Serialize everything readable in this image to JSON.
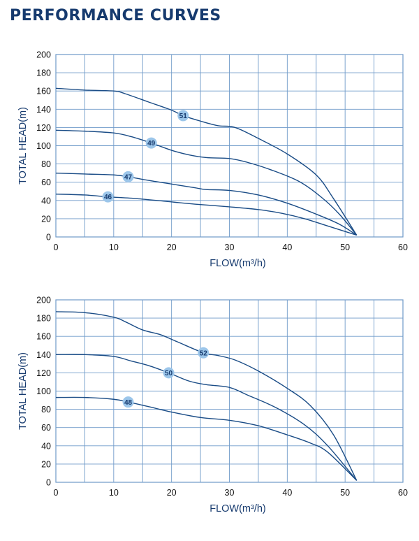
{
  "page_title": "PERFORMANCE CURVES",
  "colors": {
    "title": "#163a6e",
    "curve": "#1a4c86",
    "grid": "#6f9ac9",
    "badge_fill": "#9cc6ea",
    "axis_label": "#163a6e"
  },
  "chart_data": [
    {
      "type": "line",
      "xlabel": "FLOW(m³/h)",
      "ylabel": "TOTAL HEAD(m)",
      "xlim": [
        0,
        60
      ],
      "ylim": [
        0,
        200
      ],
      "xticks": [
        0,
        10,
        20,
        30,
        40,
        50,
        60
      ],
      "yticks": [
        0,
        20,
        40,
        60,
        80,
        100,
        120,
        140,
        160,
        180,
        200
      ],
      "grid": true,
      "series": [
        {
          "name": "51",
          "label_at": [
            22,
            133
          ],
          "points": [
            [
              0,
              163
            ],
            [
              5,
              161
            ],
            [
              10,
              160
            ],
            [
              12,
              157
            ],
            [
              16,
              148
            ],
            [
              20,
              139
            ],
            [
              22,
              133
            ],
            [
              25,
              127
            ],
            [
              28,
              122
            ],
            [
              31,
              120
            ],
            [
              35,
              108
            ],
            [
              40,
              91
            ],
            [
              45,
              68
            ],
            [
              48,
              42
            ],
            [
              52,
              2
            ]
          ]
        },
        {
          "name": "49",
          "label_at": [
            16.5,
            103
          ],
          "points": [
            [
              0,
              117
            ],
            [
              5,
              116
            ],
            [
              10,
              114
            ],
            [
              13,
              110
            ],
            [
              16.5,
              103
            ],
            [
              20,
              95
            ],
            [
              23,
              90
            ],
            [
              26,
              87
            ],
            [
              30,
              86
            ],
            [
              33,
              82
            ],
            [
              37,
              74
            ],
            [
              42,
              61
            ],
            [
              46,
              43
            ],
            [
              49,
              25
            ],
            [
              52,
              2
            ]
          ]
        },
        {
          "name": "47",
          "label_at": [
            12.5,
            66
          ],
          "points": [
            [
              0,
              70
            ],
            [
              5,
              69
            ],
            [
              10,
              68
            ],
            [
              12.5,
              66
            ],
            [
              16,
              62
            ],
            [
              20,
              58
            ],
            [
              24,
              54
            ],
            [
              26,
              52
            ],
            [
              30,
              51
            ],
            [
              35,
              46
            ],
            [
              40,
              37
            ],
            [
              45,
              25
            ],
            [
              49,
              14
            ],
            [
              52,
              2
            ]
          ]
        },
        {
          "name": "46",
          "label_at": [
            9,
            44
          ],
          "points": [
            [
              0,
              47
            ],
            [
              5,
              46
            ],
            [
              9,
              44
            ],
            [
              14,
              42
            ],
            [
              19,
              39
            ],
            [
              24,
              36
            ],
            [
              30,
              33
            ],
            [
              35,
              30
            ],
            [
              39,
              26
            ],
            [
              43,
              20
            ],
            [
              47,
              12
            ],
            [
              52,
              2
            ]
          ]
        }
      ]
    },
    {
      "type": "line",
      "xlabel": "FLOW(m³/h)",
      "ylabel": "TOTAL HEAD(m)",
      "xlim": [
        0,
        60
      ],
      "ylim": [
        0,
        200
      ],
      "xticks": [
        0,
        10,
        20,
        30,
        40,
        50,
        60
      ],
      "yticks": [
        0,
        20,
        40,
        60,
        80,
        100,
        120,
        140,
        160,
        180,
        200
      ],
      "grid": true,
      "series": [
        {
          "name": "52",
          "label_at": [
            25.5,
            142
          ],
          "points": [
            [
              0,
              187
            ],
            [
              5,
              186
            ],
            [
              10,
              181
            ],
            [
              12,
              176
            ],
            [
              15,
              167
            ],
            [
              18,
              162
            ],
            [
              21,
              154
            ],
            [
              25.5,
              142
            ],
            [
              28,
              139
            ],
            [
              31,
              134
            ],
            [
              35,
              122
            ],
            [
              40,
              103
            ],
            [
              44,
              84
            ],
            [
              48,
              52
            ],
            [
              52,
              2
            ]
          ]
        },
        {
          "name": "50",
          "label_at": [
            19.5,
            120
          ],
          "points": [
            [
              0,
              140
            ],
            [
              5,
              140
            ],
            [
              10,
              138
            ],
            [
              13,
              133
            ],
            [
              16,
              128
            ],
            [
              19.5,
              120
            ],
            [
              23,
              111
            ],
            [
              26,
              107
            ],
            [
              30,
              104
            ],
            [
              33,
              96
            ],
            [
              38,
              82
            ],
            [
              43,
              63
            ],
            [
              47,
              40
            ],
            [
              52,
              2
            ]
          ]
        },
        {
          "name": "48",
          "label_at": [
            12.5,
            88
          ],
          "points": [
            [
              0,
              93
            ],
            [
              5,
              93
            ],
            [
              10,
              91
            ],
            [
              12.5,
              88
            ],
            [
              16,
              83
            ],
            [
              20,
              77
            ],
            [
              25,
              71
            ],
            [
              30,
              68
            ],
            [
              35,
              62
            ],
            [
              40,
              52
            ],
            [
              44,
              43
            ],
            [
              47,
              33
            ],
            [
              52,
              2
            ]
          ]
        }
      ]
    }
  ]
}
